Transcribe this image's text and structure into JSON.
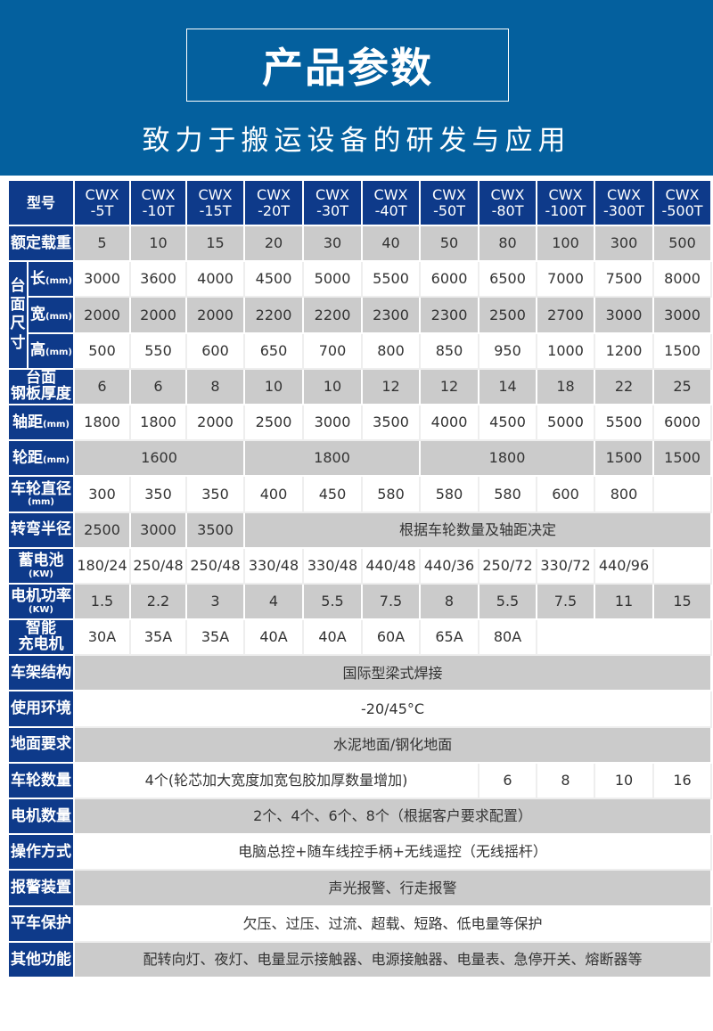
{
  "header": {
    "title": "产品参数",
    "subtitle": "致力于搬运设备的研发与应用"
  },
  "colors": {
    "header_bg": "#04609e",
    "label_bg": "#0e3a8a",
    "row_gray": "#cbcbcb"
  },
  "table": {
    "model_label": "型号",
    "models": [
      "CWX\n-5T",
      "CWX\n-10T",
      "CWX\n-15T",
      "CWX\n-20T",
      "CWX\n-30T",
      "CWX\n-40T",
      "CWX\n-50T",
      "CWX\n-80T",
      "CWX\n-100T",
      "CWX\n-300T",
      "CWX\n-500T"
    ],
    "dim_group_label": "台面尺寸",
    "rows": [
      {
        "label": "额定载重",
        "cells": [
          {
            "t": "5"
          },
          {
            "t": "10"
          },
          {
            "t": "15"
          },
          {
            "t": "20"
          },
          {
            "t": "30"
          },
          {
            "t": "40"
          },
          {
            "t": "50"
          },
          {
            "t": "80"
          },
          {
            "t": "100"
          },
          {
            "t": "300"
          },
          {
            "t": "500"
          }
        ]
      },
      {
        "group": true,
        "label": "长",
        "unit": "(mm)",
        "cells": [
          {
            "t": "3000"
          },
          {
            "t": "3600"
          },
          {
            "t": "4000"
          },
          {
            "t": "4500"
          },
          {
            "t": "5000"
          },
          {
            "t": "5500"
          },
          {
            "t": "6000"
          },
          {
            "t": "6500"
          },
          {
            "t": "7000"
          },
          {
            "t": "7500"
          },
          {
            "t": "8000"
          }
        ]
      },
      {
        "group": true,
        "label": "宽",
        "unit": "(mm)",
        "cells": [
          {
            "t": "2000"
          },
          {
            "t": "2000"
          },
          {
            "t": "2000"
          },
          {
            "t": "2200"
          },
          {
            "t": "2200"
          },
          {
            "t": "2300"
          },
          {
            "t": "2300"
          },
          {
            "t": "2500"
          },
          {
            "t": "2700"
          },
          {
            "t": "3000"
          },
          {
            "t": "3000"
          }
        ]
      },
      {
        "group": true,
        "label": "高",
        "unit": "(mm)",
        "cells": [
          {
            "t": "500"
          },
          {
            "t": "550"
          },
          {
            "t": "600"
          },
          {
            "t": "650"
          },
          {
            "t": "700"
          },
          {
            "t": "800"
          },
          {
            "t": "850"
          },
          {
            "t": "950"
          },
          {
            "t": "1000"
          },
          {
            "t": "1200"
          },
          {
            "t": "1500"
          }
        ]
      },
      {
        "label": "台面\n钢板厚度",
        "cells": [
          {
            "t": "6"
          },
          {
            "t": "6"
          },
          {
            "t": "8"
          },
          {
            "t": "10"
          },
          {
            "t": "10"
          },
          {
            "t": "12"
          },
          {
            "t": "12"
          },
          {
            "t": "14"
          },
          {
            "t": "18"
          },
          {
            "t": "22"
          },
          {
            "t": "25"
          }
        ]
      },
      {
        "label": "轴距",
        "unit_inline": "(mm)",
        "cells": [
          {
            "t": "1800"
          },
          {
            "t": "1800"
          },
          {
            "t": "2000"
          },
          {
            "t": "2500"
          },
          {
            "t": "3000"
          },
          {
            "t": "3500"
          },
          {
            "t": "4000"
          },
          {
            "t": "4500"
          },
          {
            "t": "5000"
          },
          {
            "t": "5500"
          },
          {
            "t": "6000"
          }
        ]
      },
      {
        "label": "轮距",
        "unit_inline": "(mm)",
        "cells": [
          {
            "t": "1600",
            "span": 3
          },
          {
            "t": "1800",
            "span": 3
          },
          {
            "t": "1800",
            "span": 3
          },
          {
            "t": "1500"
          },
          {
            "t": "1500"
          }
        ]
      },
      {
        "label": "车轮直径",
        "unit": "(mm)",
        "cells": [
          {
            "t": "300"
          },
          {
            "t": "350"
          },
          {
            "t": "350"
          },
          {
            "t": "400"
          },
          {
            "t": "450"
          },
          {
            "t": "580"
          },
          {
            "t": "580"
          },
          {
            "t": "580"
          },
          {
            "t": "600"
          },
          {
            "t": "800"
          },
          {
            "t": ""
          }
        ]
      },
      {
        "label": "转弯半径",
        "cells": [
          {
            "t": "2500"
          },
          {
            "t": "3000"
          },
          {
            "t": "3500"
          },
          {
            "t": "根据车轮数量及轴距决定",
            "span": 8
          }
        ]
      },
      {
        "label": "蓄电池",
        "unit": "(KW)",
        "cells": [
          {
            "t": "180/24"
          },
          {
            "t": "250/48"
          },
          {
            "t": "250/48"
          },
          {
            "t": "330/48"
          },
          {
            "t": "330/48"
          },
          {
            "t": "440/48"
          },
          {
            "t": "440/36"
          },
          {
            "t": "250/72"
          },
          {
            "t": "330/72"
          },
          {
            "t": "440/96"
          },
          {
            "t": ""
          }
        ]
      },
      {
        "label": "电机功率",
        "unit": "(KW)",
        "cells": [
          {
            "t": "1.5"
          },
          {
            "t": "2.2"
          },
          {
            "t": "3"
          },
          {
            "t": "4"
          },
          {
            "t": "5.5"
          },
          {
            "t": "7.5"
          },
          {
            "t": "8"
          },
          {
            "t": "5.5"
          },
          {
            "t": "7.5"
          },
          {
            "t": "11"
          },
          {
            "t": "15"
          }
        ]
      },
      {
        "label": "智能\n充电机",
        "cells": [
          {
            "t": "30A"
          },
          {
            "t": "35A"
          },
          {
            "t": "35A"
          },
          {
            "t": "40A"
          },
          {
            "t": "40A"
          },
          {
            "t": "60A"
          },
          {
            "t": "65A"
          },
          {
            "t": "80A"
          },
          {
            "t": "",
            "span": 3
          }
        ]
      },
      {
        "label": "车架结构",
        "cells": [
          {
            "t": "国际型梁式焊接",
            "span": 11
          }
        ]
      },
      {
        "label": "使用环境",
        "cells": [
          {
            "t": "-20/45°C",
            "span": 11
          }
        ]
      },
      {
        "label": "地面要求",
        "cells": [
          {
            "t": "水泥地面/钢化地面",
            "span": 11
          }
        ]
      },
      {
        "label": "车轮数量",
        "cells": [
          {
            "t": "4个(轮芯加大宽度加宽包胶加厚数量增加)",
            "span": 7
          },
          {
            "t": "6"
          },
          {
            "t": "8"
          },
          {
            "t": "10"
          },
          {
            "t": "16"
          }
        ]
      },
      {
        "label": "电机数量",
        "cells": [
          {
            "t": "2个、4个、6个、8个（根据客户要求配置）",
            "span": 11
          }
        ]
      },
      {
        "label": "操作方式",
        "cells": [
          {
            "t": "电脑总控+随车线控手柄+无线遥控（无线摇杆）",
            "span": 11
          }
        ]
      },
      {
        "label": "报警装置",
        "cells": [
          {
            "t": "声光报警、行走报警",
            "span": 11
          }
        ]
      },
      {
        "label": "平车保护",
        "cells": [
          {
            "t": "欠压、过压、过流、超载、短路、低电量等保护",
            "span": 11
          }
        ]
      },
      {
        "label": "其他功能",
        "cells": [
          {
            "t": "配转向灯、夜灯、电量显示接触器、电源接触器、电量表、急停开关、熔断器等",
            "span": 11
          }
        ]
      }
    ]
  }
}
